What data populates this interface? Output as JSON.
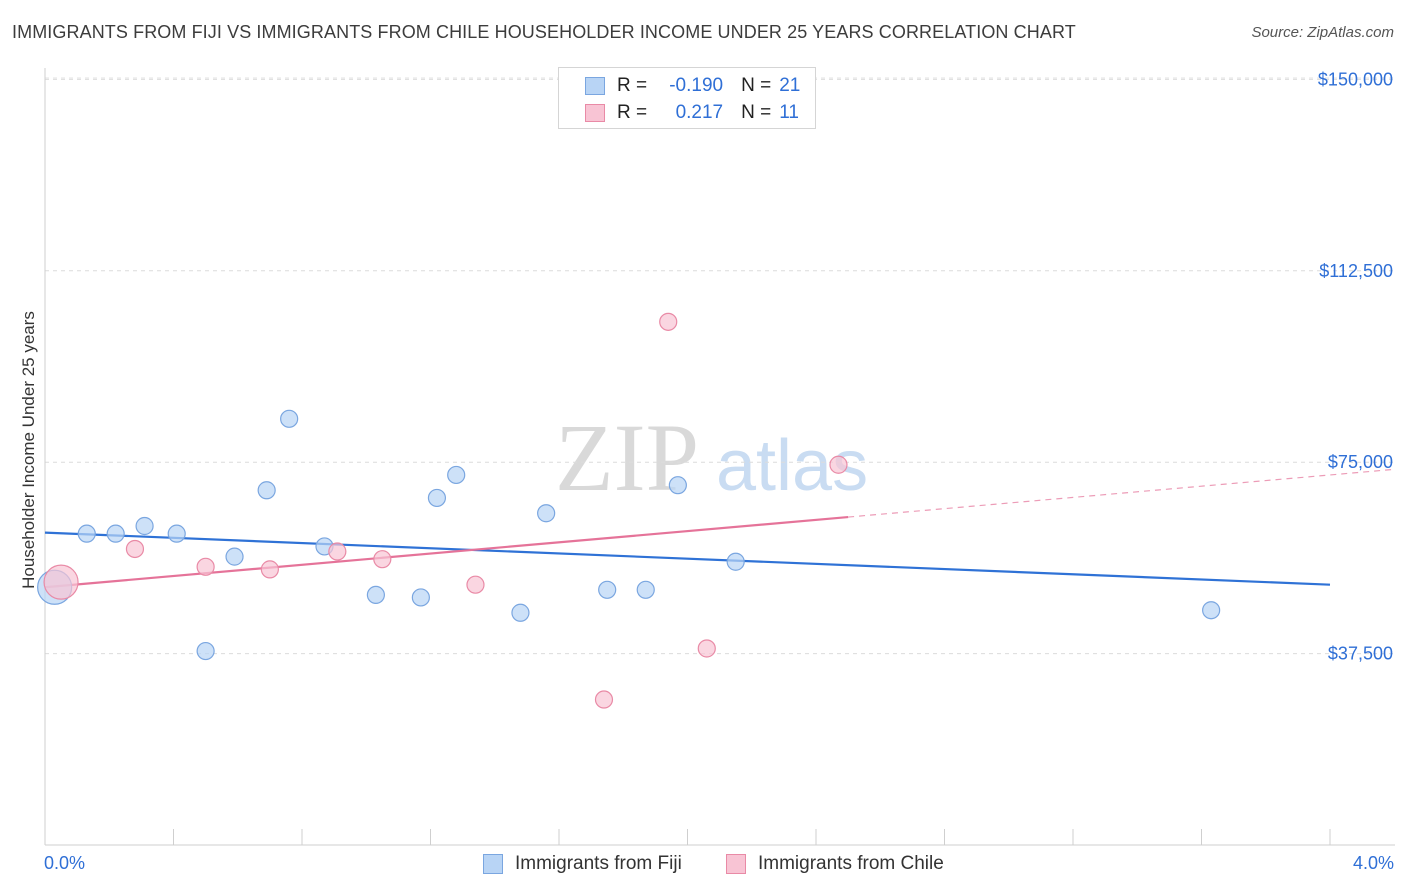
{
  "title": "IMMIGRANTS FROM FIJI VS IMMIGRANTS FROM CHILE HOUSEHOLDER INCOME UNDER 25 YEARS CORRELATION CHART",
  "source": "Source: ZipAtlas.com",
  "watermark": {
    "zip": "ZIP",
    "atlas": "atlas"
  },
  "legend": {
    "r_label": "R =",
    "n_label": "N =",
    "fiji": {
      "r": "-0.190",
      "n": "21"
    },
    "chile": {
      "r": "0.217",
      "n": "11"
    }
  },
  "colors": {
    "fiji_fill": "#b8d4f5",
    "fiji_stroke": "#7aa6e0",
    "fiji_line": "#2f72d6",
    "chile_fill": "#f8c4d4",
    "chile_stroke": "#e98aa6",
    "chile_line": "#e57399",
    "axis_text": "#2f6fd6"
  },
  "chart_data": {
    "type": "scatter",
    "title": "IMMIGRANTS FROM FIJI VS IMMIGRANTS FROM CHILE HOUSEHOLDER INCOME UNDER 25 YEARS CORRELATION CHART",
    "xlabel": "",
    "ylabel": "Householder Income Under 25 years",
    "xlim": [
      0,
      4.0
    ],
    "ylim": [
      0,
      155000
    ],
    "x_tick_labels": [
      "0.0%",
      "4.0%"
    ],
    "y_ticks": [
      37500,
      75000,
      112500,
      150000
    ],
    "y_tick_labels": [
      "$37,500",
      "$75,000",
      "$112,500",
      "$150,000"
    ],
    "series": [
      {
        "name": "Immigrants from Fiji",
        "points": [
          {
            "x": 0.03,
            "y": 50500,
            "big": true
          },
          {
            "x": 0.13,
            "y": 61000
          },
          {
            "x": 0.22,
            "y": 61000
          },
          {
            "x": 0.31,
            "y": 62500
          },
          {
            "x": 0.41,
            "y": 61000
          },
          {
            "x": 0.5,
            "y": 38000
          },
          {
            "x": 0.59,
            "y": 56500
          },
          {
            "x": 0.69,
            "y": 69500
          },
          {
            "x": 0.76,
            "y": 83500
          },
          {
            "x": 0.87,
            "y": 58500
          },
          {
            "x": 1.03,
            "y": 49000
          },
          {
            "x": 1.17,
            "y": 48500
          },
          {
            "x": 1.22,
            "y": 68000
          },
          {
            "x": 1.28,
            "y": 72500
          },
          {
            "x": 1.48,
            "y": 45500
          },
          {
            "x": 1.56,
            "y": 65000
          },
          {
            "x": 1.75,
            "y": 50000
          },
          {
            "x": 1.87,
            "y": 50000
          },
          {
            "x": 1.97,
            "y": 70500
          },
          {
            "x": 2.15,
            "y": 55500
          },
          {
            "x": 3.63,
            "y": 46000
          }
        ],
        "trend": {
          "x0": 0.0,
          "y0": 61200,
          "x1": 4.0,
          "y1": 51000,
          "dash_from": null
        }
      },
      {
        "name": "Immigrants from Chile",
        "points": [
          {
            "x": 0.05,
            "y": 51500,
            "big": true
          },
          {
            "x": 0.28,
            "y": 58000
          },
          {
            "x": 0.5,
            "y": 54500
          },
          {
            "x": 0.7,
            "y": 54000
          },
          {
            "x": 0.91,
            "y": 57500
          },
          {
            "x": 1.05,
            "y": 56000
          },
          {
            "x": 1.34,
            "y": 51000
          },
          {
            "x": 1.74,
            "y": 28500
          },
          {
            "x": 1.94,
            "y": 102500
          },
          {
            "x": 2.06,
            "y": 38500
          },
          {
            "x": 2.47,
            "y": 74500
          }
        ],
        "trend": {
          "x0": 0.0,
          "y0": 50500,
          "x1": 4.0,
          "y1": 72500,
          "dash_from": 2.5
        }
      }
    ]
  }
}
